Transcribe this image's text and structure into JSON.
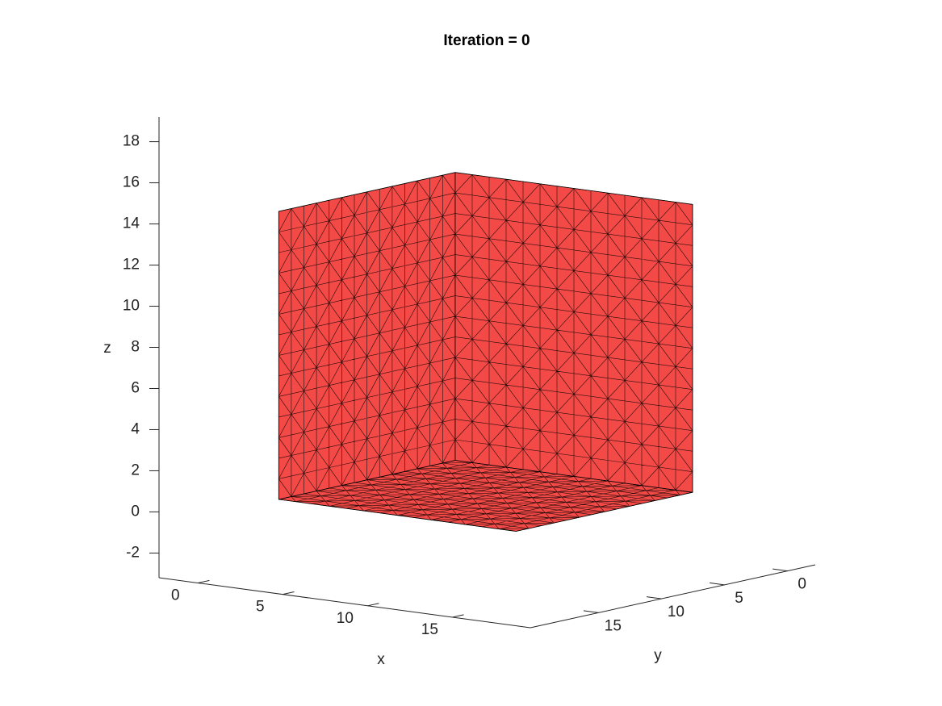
{
  "chart_data": {
    "type": "mesh3d",
    "title": "Iteration = 0",
    "xlabel": "x",
    "ylabel": "y",
    "zlabel": "z",
    "xlim": [
      -2.3,
      19.6
    ],
    "ylim": [
      -2.2,
      20.4
    ],
    "zlim": [
      -3.2,
      19.2
    ],
    "xticks": [
      0,
      5,
      10,
      15
    ],
    "yticks": [
      0,
      5,
      10,
      15
    ],
    "zticks": [
      -2,
      0,
      2,
      4,
      6,
      8,
      10,
      12,
      14,
      16,
      18
    ],
    "xrange": [
      0,
      14
    ],
    "yrange": [
      0,
      14
    ],
    "zrange": [
      0,
      14
    ],
    "color": "#f44a47"
  }
}
